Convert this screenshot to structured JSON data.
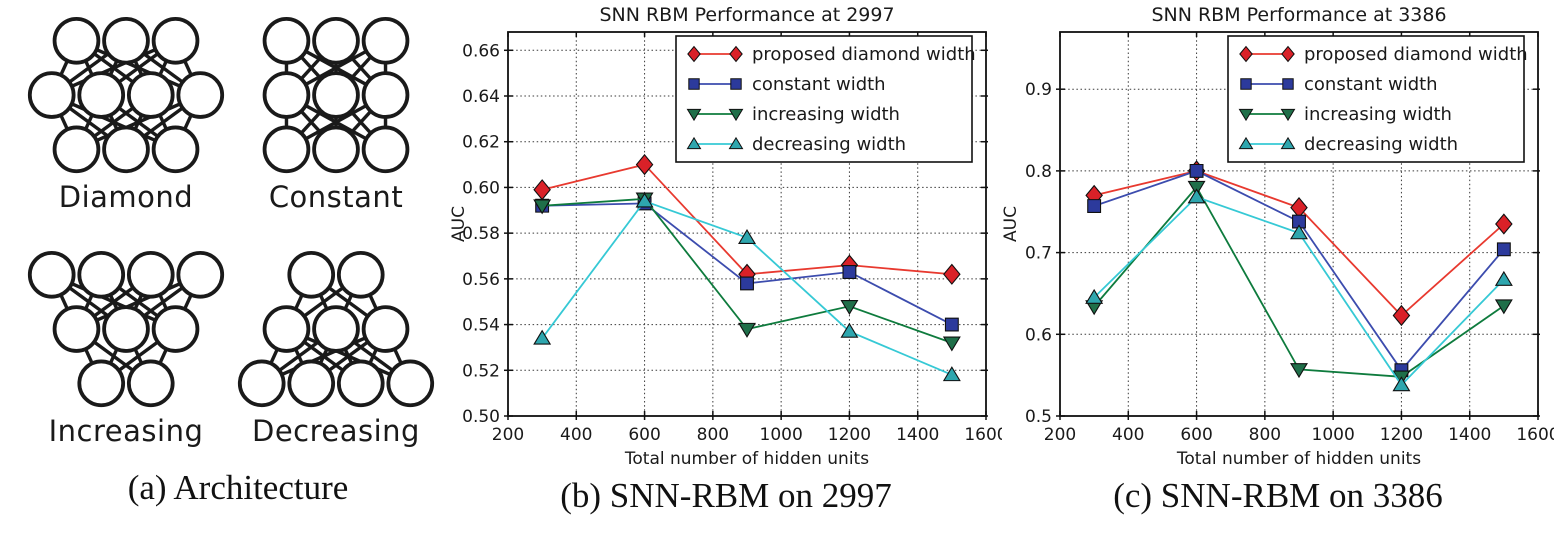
{
  "figure": {
    "background": "#ffffff",
    "architecture_panel": {
      "caption": "(a) Architecture",
      "diagrams": [
        {
          "label": "Diamond",
          "layers": [
            3,
            4,
            3
          ]
        },
        {
          "label": "Constant",
          "layers": [
            3,
            3,
            3
          ]
        },
        {
          "label": "Increasing",
          "layers": [
            4,
            3,
            2
          ]
        },
        {
          "label": "Decreasing",
          "layers": [
            2,
            3,
            4
          ]
        }
      ]
    },
    "chart_panels": [
      {
        "caption": "(b) SNN-RBM on 2997"
      },
      {
        "caption": "(c) SNN-RBM on 3386"
      }
    ]
  },
  "chart_data": [
    {
      "type": "line",
      "title": "SNN RBM Performance at 2997",
      "xlabel": "Total number of hidden units",
      "ylabel": "AUC",
      "x": [
        300,
        600,
        900,
        1200,
        1500
      ],
      "xlim": [
        200,
        1600
      ],
      "xticks": [
        200,
        400,
        600,
        800,
        1000,
        1200,
        1400,
        1600
      ],
      "ylim": [
        0.5,
        0.668
      ],
      "yticks": [
        0.5,
        0.52,
        0.54,
        0.56,
        0.58,
        0.6,
        0.62,
        0.64,
        0.66
      ],
      "ytick_labels": [
        "0.50",
        "0.52",
        "0.54",
        "0.56",
        "0.58",
        "0.60",
        "0.62",
        "0.64",
        "0.66"
      ],
      "grid": true,
      "legend_position": "upper right",
      "series": [
        {
          "name": "proposed diamond width",
          "marker": "diamond",
          "line_color": "#e8392f",
          "marker_color": "#da2128",
          "values": [
            0.599,
            0.61,
            0.562,
            0.566,
            0.562
          ]
        },
        {
          "name": "constant width",
          "marker": "square",
          "line_color": "#3c4cae",
          "marker_color": "#2c3a9c",
          "values": [
            0.592,
            0.593,
            0.558,
            0.563,
            0.54
          ]
        },
        {
          "name": "increasing width",
          "marker": "triangle-down",
          "line_color": "#0e7b3d",
          "marker_color": "#1f6f49",
          "values": [
            0.592,
            0.595,
            0.538,
            0.548,
            0.532
          ]
        },
        {
          "name": "decreasing width",
          "marker": "triangle-up",
          "line_color": "#36c9d5",
          "marker_color": "#2ea6ae",
          "values": [
            0.534,
            0.594,
            0.578,
            0.537,
            0.518
          ]
        }
      ]
    },
    {
      "type": "line",
      "title": "SNN RBM Performance at 3386",
      "xlabel": "Total number of hidden units",
      "ylabel": "AUC",
      "x": [
        300,
        600,
        900,
        1200,
        1500
      ],
      "xlim": [
        200,
        1600
      ],
      "xticks": [
        200,
        400,
        600,
        800,
        1000,
        1200,
        1400,
        1600
      ],
      "ylim": [
        0.5,
        0.97
      ],
      "yticks": [
        0.5,
        0.6,
        0.7,
        0.8,
        0.9
      ],
      "ytick_labels": [
        "0.5",
        "0.6",
        "0.7",
        "0.8",
        "0.9"
      ],
      "grid": true,
      "legend_position": "upper right",
      "series": [
        {
          "name": "proposed diamond width",
          "marker": "diamond",
          "line_color": "#e8392f",
          "marker_color": "#da2128",
          "values": [
            0.77,
            0.8,
            0.755,
            0.623,
            0.735
          ]
        },
        {
          "name": "constant width",
          "marker": "square",
          "line_color": "#3c4cae",
          "marker_color": "#2c3a9c",
          "values": [
            0.757,
            0.8,
            0.738,
            0.556,
            0.704
          ]
        },
        {
          "name": "increasing width",
          "marker": "triangle-down",
          "line_color": "#0e7b3d",
          "marker_color": "#1f6f49",
          "values": [
            0.634,
            0.78,
            0.557,
            0.548,
            0.635
          ]
        },
        {
          "name": "decreasing width",
          "marker": "triangle-up",
          "line_color": "#36c9d5",
          "marker_color": "#2ea6ae",
          "values": [
            0.645,
            0.768,
            0.724,
            0.538,
            0.667
          ]
        }
      ]
    }
  ]
}
